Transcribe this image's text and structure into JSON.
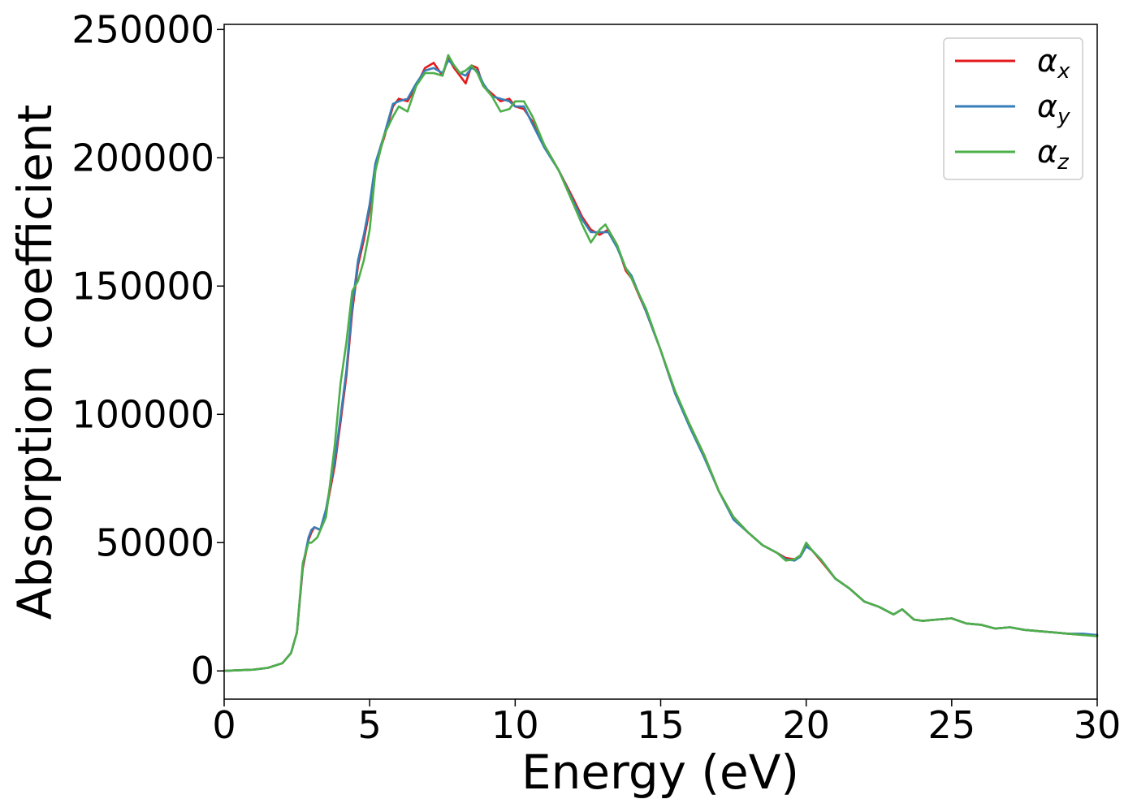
{
  "chart_data": {
    "type": "line",
    "xlabel": "Energy (eV)",
    "ylabel": "Absorption coefficient",
    "xlim": [
      0,
      30
    ],
    "ylim": [
      -11000,
      252000
    ],
    "xticks": [
      0,
      5,
      10,
      15,
      20,
      25,
      30
    ],
    "xtick_labels": [
      "0",
      "5",
      "10",
      "15",
      "20",
      "25",
      "30"
    ],
    "yticks": [
      0,
      50000,
      100000,
      150000,
      200000,
      250000
    ],
    "ytick_labels": [
      "0",
      "50000",
      "100000",
      "150000",
      "200000",
      "250000"
    ],
    "grid": false,
    "legend_position": "top-right",
    "series": [
      {
        "name": "α_x",
        "label_base": "α",
        "label_sub": "x",
        "color": "#e41a1c",
        "points": [
          [
            0,
            0
          ],
          [
            1,
            500
          ],
          [
            1.5,
            1200
          ],
          [
            2,
            3000
          ],
          [
            2.3,
            7000
          ],
          [
            2.5,
            15000
          ],
          [
            2.7,
            40000
          ],
          [
            2.9,
            51000
          ],
          [
            3.0,
            54000
          ],
          [
            3.1,
            56000
          ],
          [
            3.3,
            55000
          ],
          [
            3.5,
            62000
          ],
          [
            3.8,
            80000
          ],
          [
            4.0,
            97000
          ],
          [
            4.2,
            115000
          ],
          [
            4.4,
            140000
          ],
          [
            4.6,
            158000
          ],
          [
            4.8,
            168000
          ],
          [
            5.0,
            180000
          ],
          [
            5.2,
            197000
          ],
          [
            5.5,
            208000
          ],
          [
            5.8,
            220000
          ],
          [
            6.0,
            223000
          ],
          [
            6.3,
            222000
          ],
          [
            6.6,
            228000
          ],
          [
            6.9,
            235000
          ],
          [
            7.2,
            237000
          ],
          [
            7.5,
            232000
          ],
          [
            7.7,
            239000
          ],
          [
            7.9,
            235000
          ],
          [
            8.1,
            232000
          ],
          [
            8.3,
            229000
          ],
          [
            8.5,
            236000
          ],
          [
            8.7,
            235000
          ],
          [
            8.9,
            228000
          ],
          [
            9.2,
            225000
          ],
          [
            9.5,
            222000
          ],
          [
            9.8,
            223000
          ],
          [
            10.0,
            220000
          ],
          [
            10.3,
            219000
          ],
          [
            10.6,
            214000
          ],
          [
            11.0,
            205000
          ],
          [
            11.5,
            195000
          ],
          [
            12.0,
            184000
          ],
          [
            12.3,
            177000
          ],
          [
            12.6,
            172000
          ],
          [
            12.9,
            170000
          ],
          [
            13.2,
            172000
          ],
          [
            13.5,
            166000
          ],
          [
            13.8,
            156000
          ],
          [
            14.0,
            153000
          ],
          [
            14.5,
            140000
          ],
          [
            15.0,
            125000
          ],
          [
            15.5,
            108000
          ],
          [
            16.0,
            96000
          ],
          [
            16.5,
            84000
          ],
          [
            17.0,
            70000
          ],
          [
            17.5,
            60000
          ],
          [
            18.0,
            54000
          ],
          [
            18.5,
            49000
          ],
          [
            19.0,
            46000
          ],
          [
            19.3,
            44000
          ],
          [
            19.6,
            43500
          ],
          [
            19.8,
            45000
          ],
          [
            20.0,
            49000
          ],
          [
            20.2,
            47000
          ],
          [
            20.5,
            43000
          ],
          [
            21.0,
            36000
          ],
          [
            21.5,
            32000
          ],
          [
            22.0,
            27000
          ],
          [
            22.5,
            25000
          ],
          [
            23.0,
            22000
          ],
          [
            23.3,
            24000
          ],
          [
            23.7,
            20000
          ],
          [
            24.0,
            19500
          ],
          [
            24.5,
            20000
          ],
          [
            25.0,
            20500
          ],
          [
            25.5,
            18500
          ],
          [
            26.0,
            18000
          ],
          [
            26.5,
            16500
          ],
          [
            27.0,
            17000
          ],
          [
            27.5,
            16000
          ],
          [
            28.0,
            15500
          ],
          [
            28.5,
            15000
          ],
          [
            29.0,
            14500
          ],
          [
            29.5,
            14000
          ],
          [
            30.0,
            14000
          ]
        ]
      },
      {
        "name": "α_y",
        "label_base": "α",
        "label_sub": "y",
        "color": "#377eb8",
        "points": [
          [
            0,
            0
          ],
          [
            1,
            500
          ],
          [
            1.5,
            1200
          ],
          [
            2,
            3000
          ],
          [
            2.3,
            7000
          ],
          [
            2.5,
            15000
          ],
          [
            2.7,
            41000
          ],
          [
            2.9,
            52000
          ],
          [
            3.0,
            55000
          ],
          [
            3.1,
            56000
          ],
          [
            3.3,
            55000
          ],
          [
            3.5,
            63000
          ],
          [
            3.8,
            82000
          ],
          [
            4.0,
            99000
          ],
          [
            4.2,
            117000
          ],
          [
            4.4,
            142000
          ],
          [
            4.6,
            160000
          ],
          [
            4.8,
            170000
          ],
          [
            5.0,
            182000
          ],
          [
            5.2,
            198000
          ],
          [
            5.5,
            209000
          ],
          [
            5.8,
            221000
          ],
          [
            6.0,
            222000
          ],
          [
            6.3,
            223000
          ],
          [
            6.6,
            229000
          ],
          [
            6.9,
            234000
          ],
          [
            7.2,
            235000
          ],
          [
            7.5,
            233000
          ],
          [
            7.7,
            238000
          ],
          [
            7.9,
            236000
          ],
          [
            8.1,
            233000
          ],
          [
            8.3,
            232000
          ],
          [
            8.5,
            235000
          ],
          [
            8.7,
            234000
          ],
          [
            8.9,
            229000
          ],
          [
            9.2,
            224000
          ],
          [
            9.5,
            223000
          ],
          [
            9.8,
            222000
          ],
          [
            10.0,
            220000
          ],
          [
            10.3,
            220000
          ],
          [
            10.6,
            213000
          ],
          [
            11.0,
            204000
          ],
          [
            11.5,
            195000
          ],
          [
            12.0,
            183000
          ],
          [
            12.3,
            176000
          ],
          [
            12.6,
            171000
          ],
          [
            12.9,
            171000
          ],
          [
            13.2,
            171000
          ],
          [
            13.5,
            165000
          ],
          [
            13.8,
            157000
          ],
          [
            14.0,
            154000
          ],
          [
            14.5,
            140000
          ],
          [
            15.0,
            125000
          ],
          [
            15.5,
            108000
          ],
          [
            16.0,
            95000
          ],
          [
            16.5,
            83000
          ],
          [
            17.0,
            70000
          ],
          [
            17.5,
            59000
          ],
          [
            18.0,
            54000
          ],
          [
            18.5,
            49000
          ],
          [
            19.0,
            46000
          ],
          [
            19.3,
            43500
          ],
          [
            19.6,
            43000
          ],
          [
            19.8,
            44500
          ],
          [
            20.0,
            48500
          ],
          [
            20.2,
            47000
          ],
          [
            20.5,
            43500
          ],
          [
            21.0,
            36000
          ],
          [
            21.5,
            32000
          ],
          [
            22.0,
            27000
          ],
          [
            22.5,
            25000
          ],
          [
            23.0,
            22000
          ],
          [
            23.3,
            24000
          ],
          [
            23.7,
            20000
          ],
          [
            24.0,
            19500
          ],
          [
            24.5,
            20000
          ],
          [
            25.0,
            20500
          ],
          [
            25.5,
            18500
          ],
          [
            26.0,
            18000
          ],
          [
            26.5,
            16500
          ],
          [
            27.0,
            17000
          ],
          [
            27.5,
            16000
          ],
          [
            28.0,
            15500
          ],
          [
            28.5,
            15000
          ],
          [
            29.0,
            14500
          ],
          [
            29.5,
            14500
          ],
          [
            30.0,
            14000
          ]
        ]
      },
      {
        "name": "α_z",
        "label_base": "α",
        "label_sub": "z",
        "color": "#4daf4a",
        "points": [
          [
            0,
            0
          ],
          [
            1,
            500
          ],
          [
            1.5,
            1200
          ],
          [
            2,
            3000
          ],
          [
            2.3,
            7000
          ],
          [
            2.5,
            15000
          ],
          [
            2.7,
            42000
          ],
          [
            2.9,
            50000
          ],
          [
            3.0,
            50000
          ],
          [
            3.2,
            52000
          ],
          [
            3.5,
            60000
          ],
          [
            3.8,
            88000
          ],
          [
            4.0,
            112000
          ],
          [
            4.2,
            128000
          ],
          [
            4.4,
            148000
          ],
          [
            4.6,
            152000
          ],
          [
            4.8,
            160000
          ],
          [
            5.0,
            172000
          ],
          [
            5.2,
            195000
          ],
          [
            5.5,
            209000
          ],
          [
            5.8,
            216000
          ],
          [
            6.0,
            220000
          ],
          [
            6.3,
            218000
          ],
          [
            6.6,
            228000
          ],
          [
            6.9,
            233000
          ],
          [
            7.2,
            233000
          ],
          [
            7.5,
            232000
          ],
          [
            7.7,
            240000
          ],
          [
            7.9,
            236000
          ],
          [
            8.1,
            233000
          ],
          [
            8.3,
            234000
          ],
          [
            8.5,
            236000
          ],
          [
            8.7,
            233000
          ],
          [
            8.9,
            228000
          ],
          [
            9.2,
            224000
          ],
          [
            9.5,
            218000
          ],
          [
            9.8,
            219000
          ],
          [
            10.0,
            222000
          ],
          [
            10.3,
            222000
          ],
          [
            10.6,
            216000
          ],
          [
            11.0,
            205000
          ],
          [
            11.5,
            195000
          ],
          [
            12.0,
            182000
          ],
          [
            12.3,
            174000
          ],
          [
            12.6,
            167000
          ],
          [
            12.9,
            172000
          ],
          [
            13.1,
            174000
          ],
          [
            13.5,
            166000
          ],
          [
            13.8,
            157000
          ],
          [
            14.0,
            153000
          ],
          [
            14.5,
            141000
          ],
          [
            15.0,
            125000
          ],
          [
            15.5,
            109000
          ],
          [
            16.0,
            96000
          ],
          [
            16.5,
            84000
          ],
          [
            17.0,
            70000
          ],
          [
            17.5,
            60000
          ],
          [
            18.0,
            54000
          ],
          [
            18.5,
            49000
          ],
          [
            19.0,
            46000
          ],
          [
            19.3,
            43000
          ],
          [
            19.6,
            43500
          ],
          [
            19.8,
            45000
          ],
          [
            20.0,
            50000
          ],
          [
            20.2,
            47000
          ],
          [
            20.5,
            43500
          ],
          [
            21.0,
            36000
          ],
          [
            21.5,
            32000
          ],
          [
            22.0,
            27000
          ],
          [
            22.5,
            25000
          ],
          [
            23.0,
            22000
          ],
          [
            23.3,
            24000
          ],
          [
            23.7,
            20000
          ],
          [
            24.0,
            19500
          ],
          [
            24.5,
            20000
          ],
          [
            25.0,
            20500
          ],
          [
            25.5,
            18500
          ],
          [
            26.0,
            18000
          ],
          [
            26.5,
            16500
          ],
          [
            27.0,
            17000
          ],
          [
            27.5,
            16000
          ],
          [
            28.0,
            15500
          ],
          [
            28.5,
            15000
          ],
          [
            29.0,
            14500
          ],
          [
            29.5,
            14000
          ],
          [
            30.0,
            13500
          ]
        ]
      }
    ]
  }
}
